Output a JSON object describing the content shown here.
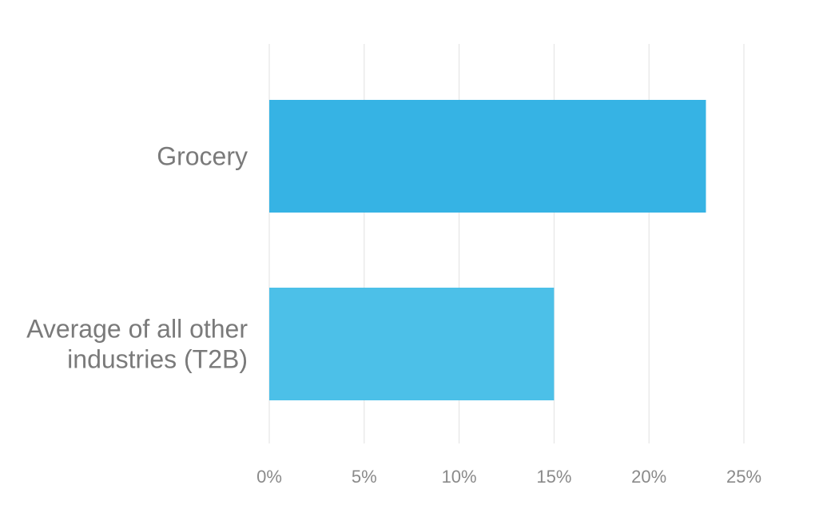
{
  "chart_data": {
    "type": "bar",
    "orientation": "horizontal",
    "categories": [
      [
        "Grocery"
      ],
      [
        "Average of all other",
        "industries (T2B)"
      ]
    ],
    "values": [
      23,
      15
    ],
    "bar_colors": [
      "#36b3e4",
      "#4cc0e8"
    ],
    "xlim": [
      0,
      25
    ],
    "xticks": [
      0,
      5,
      10,
      15,
      20,
      25
    ],
    "xtick_labels": [
      "0%",
      "5%",
      "10%",
      "15%",
      "20%",
      "25%"
    ],
    "grid": true,
    "title": "",
    "xlabel": "",
    "ylabel": ""
  }
}
